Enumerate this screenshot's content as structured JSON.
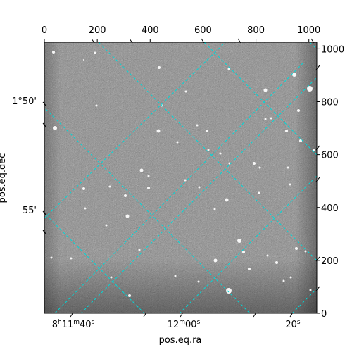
{
  "figure": {
    "xlabel": "pos.eq.ra",
    "ylabel": "pos.eq.dec"
  },
  "pixel_axes": {
    "x_ticks": [
      "0",
      "200",
      "400",
      "600",
      "800",
      "1000"
    ],
    "x_values": [
      0,
      200,
      400,
      600,
      800,
      1000
    ],
    "y_ticks": [
      "0",
      "200",
      "400",
      "600",
      "800",
      "1000"
    ],
    "y_values": [
      0,
      200,
      400,
      600,
      800,
      1000
    ]
  },
  "world_axes": {
    "ra_labels": [
      {
        "h": "8",
        "hs": "h",
        "m": "11",
        "ms": "m",
        "s": "40",
        "ss": "s"
      },
      {
        "h": "",
        "hs": "",
        "m": "12",
        "ms": "m",
        "s": "00",
        "ss": "s"
      },
      {
        "h": "",
        "hs": "",
        "m": "",
        "ms": "",
        "s": "20",
        "ss": "s"
      }
    ],
    "dec_labels": [
      "1°50'",
      "55'"
    ]
  },
  "colors": {
    "grid": "#00d8d8",
    "image_background": "#7a7a7a"
  }
}
